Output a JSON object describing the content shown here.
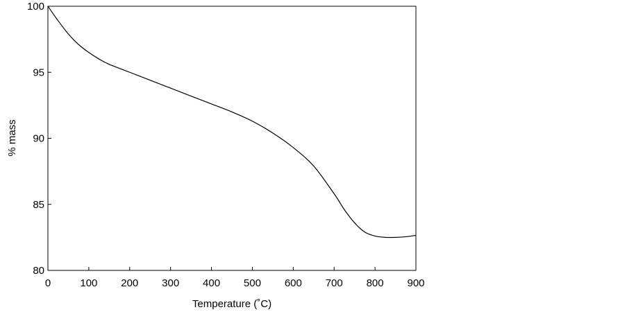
{
  "chart_data": {
    "type": "line",
    "title": "",
    "xlabel": "Temperature (˚C)",
    "ylabel": "% mass",
    "xlim": [
      0,
      900
    ],
    "ylim": [
      80,
      100
    ],
    "xticks": [
      0,
      100,
      200,
      300,
      400,
      500,
      600,
      700,
      800,
      900
    ],
    "yticks": [
      80,
      85,
      90,
      95,
      100
    ],
    "xtick_labels": [
      "0",
      "100",
      "200",
      "300",
      "400",
      "500",
      "600",
      "700",
      "800",
      "900"
    ],
    "ytick_labels": [
      "80",
      "85",
      "90",
      "95",
      "100"
    ],
    "grid": false,
    "legend": "none",
    "line_color": "#000000",
    "series": [
      {
        "x": [
          0,
          25,
          50,
          75,
          100,
          125,
          150,
          200,
          250,
          300,
          350,
          400,
          450,
          500,
          550,
          600,
          650,
          700,
          725,
          750,
          775,
          800,
          825,
          850,
          875,
          900
        ],
        "y": [
          100,
          98.9,
          97.9,
          97.1,
          96.5,
          96.0,
          95.6,
          95.0,
          94.4,
          93.8,
          93.2,
          92.6,
          92.0,
          91.3,
          90.4,
          89.3,
          87.9,
          85.8,
          84.6,
          83.6,
          82.9,
          82.6,
          82.5,
          82.5,
          82.55,
          82.65
        ]
      }
    ]
  }
}
